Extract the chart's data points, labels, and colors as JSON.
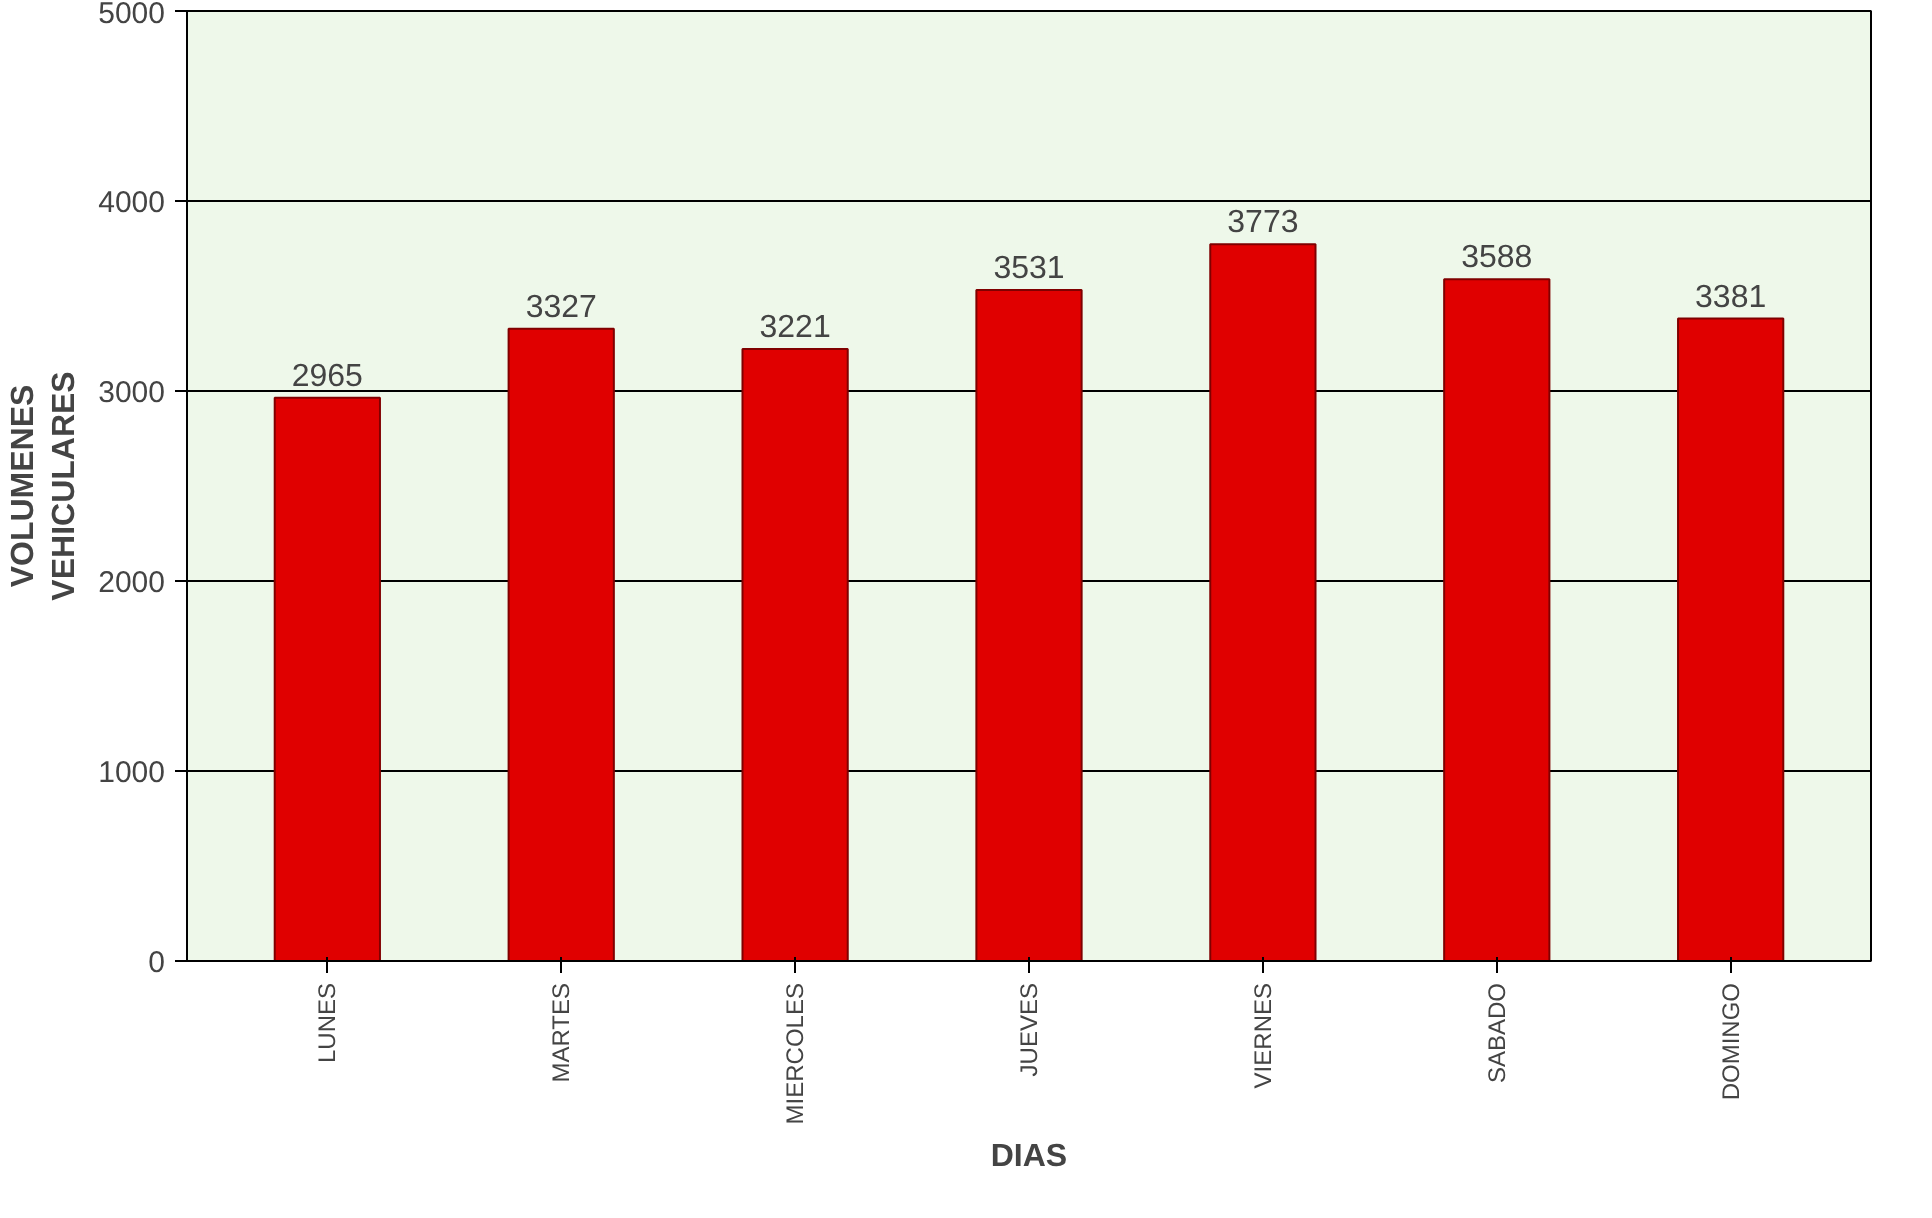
{
  "chart_data": {
    "type": "bar",
    "xlabel": "DIAS",
    "ylabel": "VOLUMENES\nVEHICULARES",
    "categories": [
      "LUNES",
      "MARTES",
      "MIERCOLES",
      "JUEVES",
      "VIERNES",
      "SABADO",
      "DOMINGO"
    ],
    "values": [
      2965,
      3327,
      3221,
      3531,
      3773,
      3588,
      3381
    ],
    "color": "#e00000",
    "ylim": [
      0,
      5000
    ],
    "yticks": [
      0,
      1000,
      2000,
      3000,
      4000,
      5000
    ],
    "grid": "y",
    "data_labels": true
  }
}
